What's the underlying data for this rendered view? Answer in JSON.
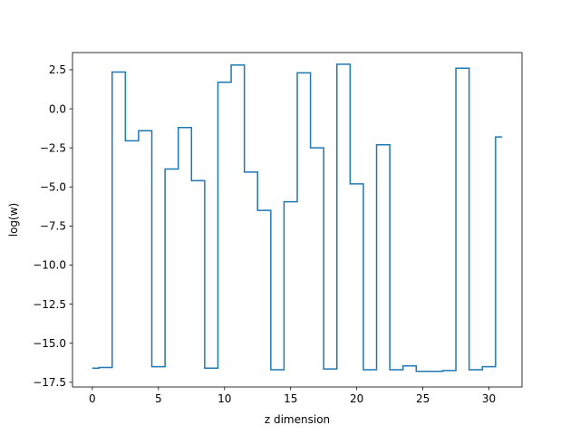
{
  "chart_data": {
    "type": "line",
    "drawstyle": "steps-mid",
    "title": "",
    "xlabel": "z dimension",
    "ylabel": "log(w)",
    "xlim": [
      -1.5,
      32.5
    ],
    "ylim": [
      -17.8,
      3.6
    ],
    "xticks": [
      0,
      5,
      10,
      15,
      20,
      25,
      30
    ],
    "yticks": [
      -17.5,
      -15.0,
      -12.5,
      -10.0,
      -7.5,
      -5.0,
      -2.5,
      0.0,
      2.5
    ],
    "ytick_labels": [
      "−17.5",
      "−15.0",
      "−12.5",
      "−10.0",
      "−7.5",
      "−5.0",
      "−2.5",
      "0.0",
      "2.5"
    ],
    "grid": false,
    "legend": "none",
    "series": [
      {
        "color": "#1f77b4",
        "x": [
          0,
          1,
          2,
          3,
          4,
          5,
          6,
          7,
          8,
          9,
          10,
          11,
          12,
          13,
          14,
          15,
          16,
          17,
          18,
          19,
          20,
          21,
          22,
          23,
          24,
          25,
          26,
          27,
          28,
          29,
          30,
          31
        ],
        "y": [
          -16.6,
          -16.55,
          2.35,
          -2.05,
          -1.4,
          -16.5,
          -3.85,
          -1.2,
          -4.6,
          -16.6,
          1.7,
          2.8,
          -4.05,
          -6.5,
          -16.7,
          -5.95,
          2.3,
          -2.5,
          -16.65,
          2.85,
          -4.8,
          -16.7,
          -2.3,
          -16.7,
          -16.45,
          -16.8,
          -16.8,
          -16.75,
          2.6,
          -16.7,
          -16.5,
          -1.8
        ]
      }
    ]
  }
}
